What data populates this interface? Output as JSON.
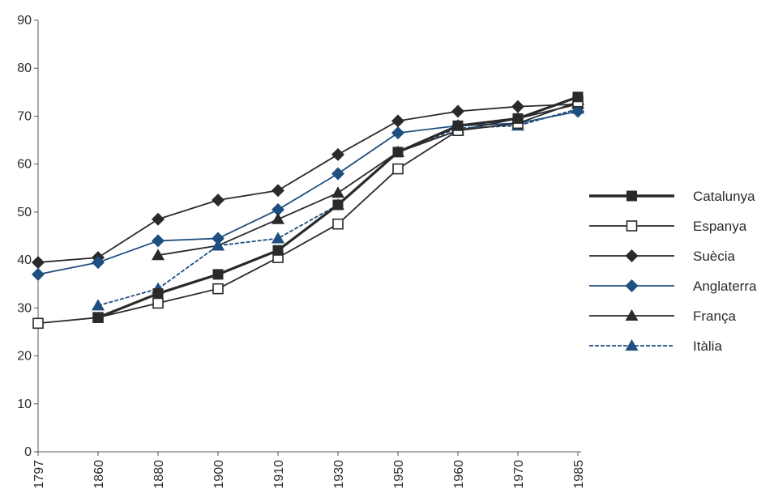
{
  "chart_data": {
    "type": "line",
    "title": "",
    "xlabel": "",
    "ylabel": "",
    "ylim": [
      0,
      90
    ],
    "yticks": [
      0,
      10,
      20,
      30,
      40,
      50,
      60,
      70,
      80,
      90
    ],
    "categories": [
      "1797",
      "1860",
      "1880",
      "1900",
      "1910",
      "1930",
      "1950",
      "1960",
      "1970",
      "1985"
    ],
    "grid": false,
    "legend_position": "right",
    "series": [
      {
        "name": "Catalunya",
        "marker": "square-filled",
        "color": "#2a2a2a",
        "line_style": "solid-thick",
        "values": [
          null,
          28,
          33,
          37,
          42,
          51.5,
          62.5,
          68,
          69.5,
          74
        ]
      },
      {
        "name": "Espanya",
        "marker": "square-open",
        "color": "#2a2a2a",
        "line_style": "solid",
        "values": [
          26.8,
          28,
          31,
          34,
          40.5,
          47.5,
          59,
          67,
          68.5,
          73
        ]
      },
      {
        "name": "Suècia",
        "marker": "diamond",
        "color": "#2a2a2a",
        "line_style": "solid",
        "values": [
          39.5,
          40.5,
          48.5,
          52.5,
          54.5,
          62,
          69,
          71,
          72,
          72.5
        ]
      },
      {
        "name": "Anglaterra",
        "marker": "diamond",
        "color": "#1f4e80",
        "line_style": "solid",
        "values": [
          37,
          39.5,
          44,
          44.5,
          50.5,
          58,
          66.5,
          68,
          68.5,
          71
        ]
      },
      {
        "name": "França",
        "marker": "triangle",
        "color": "#2a2a2a",
        "line_style": "solid",
        "values": [
          null,
          null,
          41,
          43,
          48.5,
          54,
          62.5,
          67,
          69.5,
          72.5
        ]
      },
      {
        "name": "Itàlia",
        "marker": "triangle",
        "color": "#1f4e80",
        "line_style": "dashed",
        "values": [
          null,
          30.5,
          34,
          43,
          44.5,
          51.5,
          62.5,
          67.5,
          68,
          71.5
        ]
      }
    ]
  }
}
